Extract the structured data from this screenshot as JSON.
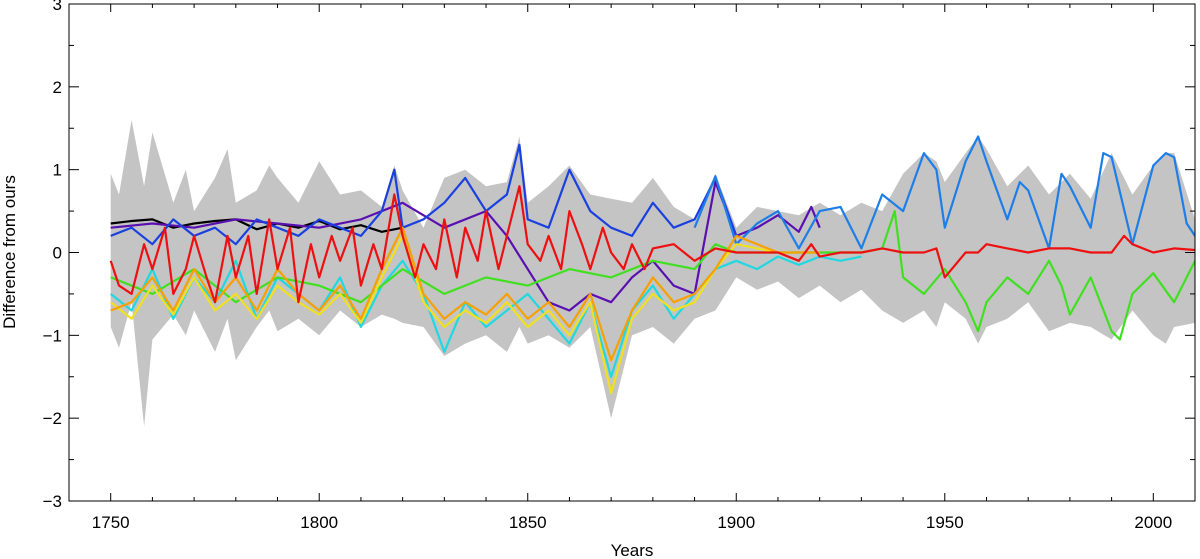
{
  "chart_data": {
    "type": "line",
    "title": "",
    "xlabel": "Years",
    "ylabel": "Difference from ours",
    "xlim": [
      1740,
      2010
    ],
    "ylim": [
      -3,
      3
    ],
    "xticks": [
      1750,
      1800,
      1850,
      1900,
      1950,
      2000
    ],
    "xtick_labels": [
      "1750",
      "1800",
      "1850",
      "1900",
      "1950",
      "2000"
    ],
    "yticks": [
      -3,
      -2,
      -1,
      0,
      1,
      2,
      3
    ],
    "ytick_labels": [
      "−3",
      "−2",
      "−1",
      "0",
      "1",
      "2",
      "3"
    ],
    "band": {
      "name": "uncertainty range",
      "color": "#c4c4c4",
      "x": [
        1750,
        1752,
        1755,
        1758,
        1760,
        1765,
        1768,
        1770,
        1775,
        1778,
        1780,
        1785,
        1788,
        1790,
        1795,
        1800,
        1805,
        1810,
        1815,
        1818,
        1820,
        1825,
        1830,
        1835,
        1840,
        1845,
        1848,
        1850,
        1855,
        1860,
        1865,
        1870,
        1875,
        1880,
        1885,
        1890,
        1895,
        1900,
        1905,
        1910,
        1915,
        1920,
        1925,
        1930,
        1935,
        1940,
        1945,
        1948,
        1950,
        1955,
        1958,
        1960,
        1965,
        1970,
        1975,
        1980,
        1985,
        1990,
        1995,
        2000,
        2003,
        2005,
        2010
      ],
      "upper": [
        0.95,
        0.7,
        1.6,
        0.8,
        1.45,
        0.6,
        1.0,
        0.5,
        0.9,
        1.25,
        0.6,
        0.75,
        1.05,
        0.9,
        0.6,
        1.1,
        0.7,
        0.75,
        0.55,
        1.05,
        0.75,
        0.3,
        0.9,
        1.0,
        0.8,
        0.85,
        1.4,
        0.6,
        0.8,
        1.05,
        0.7,
        0.65,
        0.6,
        0.9,
        0.55,
        0.4,
        0.95,
        0.3,
        0.55,
        0.5,
        0.45,
        0.6,
        0.45,
        0.6,
        0.5,
        0.95,
        1.2,
        1.1,
        0.85,
        1.2,
        1.4,
        1.25,
        0.8,
        1.05,
        0.7,
        0.95,
        0.65,
        1.2,
        0.7,
        1.05,
        1.2,
        1.2,
        0.4
      ],
      "lower": [
        -0.9,
        -1.15,
        -0.6,
        -2.1,
        -1.05,
        -0.75,
        -1.0,
        -0.7,
        -1.2,
        -0.8,
        -1.3,
        -0.9,
        -0.7,
        -0.95,
        -0.8,
        -1.0,
        -0.7,
        -0.9,
        -0.75,
        -0.8,
        -0.85,
        -0.9,
        -1.25,
        -1.1,
        -1.0,
        -1.2,
        -0.9,
        -1.1,
        -1.0,
        -1.15,
        -0.9,
        -2.0,
        -1.0,
        -0.9,
        -1.1,
        -0.8,
        -0.7,
        -0.3,
        -0.45,
        -0.35,
        -0.55,
        -0.4,
        -0.6,
        -0.45,
        -0.7,
        -0.85,
        -0.7,
        -0.9,
        -0.6,
        -0.8,
        -1.1,
        -0.9,
        -0.8,
        -0.6,
        -0.95,
        -0.85,
        -0.9,
        -1.05,
        -0.7,
        -1.0,
        -1.1,
        -0.9,
        -0.85
      ]
    },
    "series": [
      {
        "name": "black",
        "color": "#000000",
        "x": [
          1750,
          1755,
          1760,
          1765,
          1770,
          1775,
          1780,
          1785,
          1790,
          1795,
          1800,
          1805,
          1810,
          1815,
          1820
        ],
        "values": [
          0.35,
          0.38,
          0.4,
          0.3,
          0.35,
          0.38,
          0.4,
          0.28,
          0.35,
          0.3,
          0.38,
          0.28,
          0.33,
          0.25,
          0.3
        ]
      },
      {
        "name": "indigo",
        "color": "#5a10b0",
        "x": [
          1750,
          1760,
          1770,
          1780,
          1790,
          1800,
          1810,
          1820,
          1830,
          1840,
          1845,
          1850,
          1855,
          1860,
          1865,
          1870,
          1875,
          1880,
          1885,
          1890,
          1895,
          1900,
          1905,
          1910,
          1915,
          1918,
          1920
        ],
        "values": [
          0.3,
          0.35,
          0.3,
          0.4,
          0.35,
          0.3,
          0.4,
          0.6,
          0.3,
          0.5,
          0.2,
          -0.2,
          -0.6,
          -0.7,
          -0.5,
          -0.6,
          -0.3,
          -0.1,
          -0.4,
          -0.5,
          0.85,
          0.2,
          0.3,
          0.45,
          0.25,
          0.55,
          0.3
        ]
      },
      {
        "name": "blue",
        "color": "#1a40e0",
        "x": [
          1750,
          1755,
          1760,
          1765,
          1770,
          1775,
          1780,
          1785,
          1790,
          1795,
          1800,
          1805,
          1810,
          1815,
          1818,
          1820,
          1825,
          1830,
          1835,
          1840,
          1845,
          1848,
          1850,
          1855,
          1860,
          1865,
          1870,
          1875,
          1880,
          1885,
          1890,
          1895,
          1900
        ],
        "values": [
          0.2,
          0.3,
          0.1,
          0.4,
          0.2,
          0.3,
          0.1,
          0.4,
          0.3,
          0.2,
          0.4,
          0.3,
          0.2,
          0.5,
          1.0,
          0.3,
          0.4,
          0.6,
          0.9,
          0.5,
          0.7,
          1.3,
          0.4,
          0.3,
          1.0,
          0.5,
          0.3,
          0.2,
          0.6,
          0.3,
          0.4,
          0.9,
          0.2
        ]
      },
      {
        "name": "azure",
        "color": "#1e7ee8",
        "x": [
          1890,
          1895,
          1900,
          1905,
          1910,
          1915,
          1920,
          1925,
          1930,
          1935,
          1940,
          1945,
          1948,
          1950,
          1955,
          1958,
          1960,
          1965,
          1968,
          1970,
          1975,
          1978,
          1980,
          1985,
          1988,
          1990,
          1995,
          2000,
          2003,
          2005,
          2008,
          2010
        ],
        "values": [
          0.3,
          0.92,
          0.1,
          0.35,
          0.5,
          0.05,
          0.5,
          0.55,
          0.05,
          0.7,
          0.5,
          1.2,
          1.0,
          0.3,
          1.1,
          1.4,
          1.1,
          0.4,
          0.85,
          0.75,
          0.05,
          0.95,
          0.8,
          0.3,
          1.2,
          1.15,
          0.1,
          1.05,
          1.2,
          1.15,
          0.35,
          0.2
        ]
      },
      {
        "name": "cyan",
        "color": "#20d8e0",
        "x": [
          1750,
          1755,
          1760,
          1765,
          1770,
          1775,
          1780,
          1785,
          1790,
          1795,
          1800,
          1805,
          1810,
          1815,
          1820,
          1825,
          1830,
          1835,
          1840,
          1845,
          1850,
          1855,
          1860,
          1865,
          1870,
          1875,
          1880,
          1885,
          1890,
          1895,
          1900,
          1905,
          1910,
          1915,
          1920,
          1925,
          1930
        ],
        "values": [
          -0.5,
          -0.7,
          -0.2,
          -0.8,
          -0.3,
          -0.6,
          -0.1,
          -0.8,
          -0.3,
          -0.5,
          -0.7,
          -0.3,
          -0.9,
          -0.4,
          -0.1,
          -0.5,
          -1.2,
          -0.6,
          -0.9,
          -0.7,
          -0.5,
          -0.8,
          -1.1,
          -0.6,
          -1.5,
          -0.7,
          -0.4,
          -0.8,
          -0.5,
          -0.2,
          -0.1,
          -0.2,
          -0.05,
          -0.15,
          -0.05,
          -0.1,
          -0.05
        ]
      },
      {
        "name": "green",
        "color": "#40e020",
        "x": [
          1750,
          1760,
          1770,
          1780,
          1790,
          1800,
          1810,
          1820,
          1830,
          1840,
          1850,
          1860,
          1870,
          1880,
          1890,
          1895,
          1900,
          1910,
          1920,
          1930,
          1935,
          1938,
          1940,
          1945,
          1950,
          1955,
          1958,
          1960,
          1965,
          1970,
          1975,
          1978,
          1980,
          1985,
          1990,
          1992,
          1995,
          2000,
          2005,
          2010
        ],
        "values": [
          -0.3,
          -0.5,
          -0.2,
          -0.6,
          -0.3,
          -0.4,
          -0.6,
          -0.2,
          -0.5,
          -0.3,
          -0.4,
          -0.2,
          -0.3,
          -0.1,
          -0.2,
          0.1,
          0.0,
          0.0,
          0.0,
          0.0,
          0.05,
          0.5,
          -0.3,
          -0.5,
          -0.2,
          -0.6,
          -0.95,
          -0.6,
          -0.3,
          -0.5,
          -0.1,
          -0.4,
          -0.75,
          -0.3,
          -0.95,
          -1.05,
          -0.5,
          -0.25,
          -0.6,
          -0.1
        ]
      },
      {
        "name": "yellow",
        "color": "#f0e020",
        "x": [
          1750,
          1755,
          1760,
          1765,
          1770,
          1775,
          1780,
          1785,
          1790,
          1795,
          1800,
          1805,
          1810,
          1815,
          1820,
          1825,
          1830,
          1835,
          1840,
          1845,
          1850,
          1855,
          1860,
          1865,
          1870,
          1875,
          1880,
          1885,
          1890,
          1895,
          1900,
          1905,
          1910
        ],
        "values": [
          -0.6,
          -0.8,
          -0.4,
          -0.75,
          -0.3,
          -0.7,
          -0.5,
          -0.8,
          -0.4,
          -0.6,
          -0.75,
          -0.5,
          -0.85,
          -0.3,
          0.2,
          -0.6,
          -0.9,
          -0.7,
          -0.85,
          -0.6,
          -0.9,
          -0.7,
          -1.0,
          -0.6,
          -1.7,
          -0.8,
          -0.5,
          -0.7,
          -0.6,
          -0.2,
          0.1,
          0.05,
          0.0
        ]
      },
      {
        "name": "orange",
        "color": "#f8a000",
        "x": [
          1750,
          1755,
          1760,
          1765,
          1770,
          1775,
          1780,
          1785,
          1790,
          1795,
          1800,
          1805,
          1810,
          1815,
          1820,
          1825,
          1830,
          1835,
          1840,
          1845,
          1850,
          1855,
          1860,
          1865,
          1870,
          1875,
          1880,
          1885,
          1890,
          1895,
          1900,
          1905,
          1910,
          1920
        ],
        "values": [
          -0.7,
          -0.6,
          -0.3,
          -0.7,
          -0.2,
          -0.6,
          -0.3,
          -0.7,
          -0.2,
          -0.5,
          -0.7,
          -0.4,
          -0.8,
          -0.2,
          0.3,
          -0.5,
          -0.8,
          -0.6,
          -0.75,
          -0.5,
          -0.8,
          -0.6,
          -0.9,
          -0.5,
          -1.3,
          -0.7,
          -0.3,
          -0.6,
          -0.5,
          -0.2,
          0.2,
          0.1,
          0.0,
          0.0
        ]
      },
      {
        "name": "red",
        "color": "#ee1010",
        "x": [
          1750,
          1752,
          1755,
          1758,
          1760,
          1763,
          1765,
          1768,
          1770,
          1773,
          1775,
          1778,
          1780,
          1783,
          1785,
          1788,
          1790,
          1793,
          1795,
          1798,
          1800,
          1803,
          1805,
          1808,
          1810,
          1813,
          1815,
          1818,
          1820,
          1823,
          1825,
          1828,
          1830,
          1833,
          1835,
          1838,
          1840,
          1843,
          1845,
          1848,
          1850,
          1853,
          1855,
          1858,
          1860,
          1863,
          1865,
          1868,
          1870,
          1873,
          1875,
          1878,
          1880,
          1885,
          1890,
          1895,
          1900,
          1905,
          1910,
          1915,
          1918,
          1920,
          1925,
          1930,
          1935,
          1940,
          1945,
          1948,
          1950,
          1955,
          1958,
          1960,
          1965,
          1970,
          1975,
          1980,
          1985,
          1990,
          1993,
          1995,
          2000,
          2005,
          2010
        ],
        "values": [
          -0.1,
          -0.4,
          -0.5,
          0.1,
          -0.2,
          0.3,
          -0.5,
          -0.2,
          0.2,
          -0.3,
          -0.6,
          0.2,
          -0.3,
          0.2,
          -0.5,
          0.4,
          -0.2,
          0.3,
          -0.6,
          0.1,
          -0.3,
          0.2,
          -0.1,
          0.3,
          -0.4,
          0.1,
          -0.2,
          0.7,
          0.2,
          -0.3,
          0.1,
          -0.2,
          0.4,
          -0.3,
          0.3,
          -0.1,
          0.5,
          -0.2,
          0.2,
          0.8,
          0.1,
          -0.1,
          0.2,
          -0.2,
          0.5,
          0.1,
          -0.2,
          0.3,
          0.0,
          -0.2,
          0.1,
          -0.2,
          0.05,
          0.1,
          -0.1,
          0.05,
          0.0,
          0.0,
          0.0,
          -0.1,
          0.1,
          -0.05,
          0.0,
          0.0,
          0.05,
          0.0,
          0.0,
          0.05,
          -0.3,
          0.0,
          0.0,
          0.1,
          0.05,
          0.0,
          0.05,
          0.05,
          0.0,
          0.0,
          0.2,
          0.1,
          0.0,
          0.05,
          0.03
        ]
      }
    ]
  }
}
